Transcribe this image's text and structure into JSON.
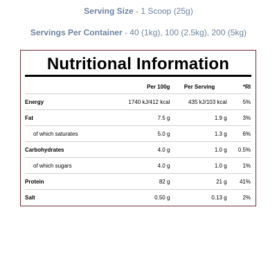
{
  "serving": {
    "size_label": "Serving Size",
    "size_value": " - 1 Scoop (25g)",
    "per_container_label": "Servings Per Container",
    "per_container_value": " - 40 (1kg), 100 (2.5kg), 200 (5kg)"
  },
  "panel": {
    "title": "Nutritional Information"
  },
  "table": {
    "headers": {
      "name": "",
      "per_100g": "Per 100g",
      "per_serving": "Per Serving",
      "ri": "*RI"
    },
    "rows": [
      {
        "name": "Energy",
        "per_100g": "1740 kJ/412 kcal",
        "per_serving": "435 kJ/103 kcal",
        "ri": "5%"
      },
      {
        "name": "Fat",
        "per_100g": "7.5 g",
        "per_serving": "1.9 g",
        "ri": "3%"
      },
      {
        "name": "of which saturates",
        "per_100g": "5.0 g",
        "per_serving": "1.3 g",
        "ri": "6%"
      },
      {
        "name": "Carbohydrates",
        "per_100g": "4.0 g",
        "per_serving": "1.0 g",
        "ri": "0.5%"
      },
      {
        "name": "of which sugars",
        "per_100g": "4.0 g",
        "per_serving": "1.0 g",
        "ri": "1%"
      },
      {
        "name": "Protein",
        "per_100g": "82 g",
        "per_serving": "21 g",
        "ri": "41%"
      },
      {
        "name": "Salt",
        "per_100g": "0.50 g",
        "per_serving": "0.13 g",
        "ri": "2%"
      }
    ]
  },
  "colors": {
    "serving_text": "#6d84a0",
    "panel_border": "#6e2a33",
    "text": "#000000"
  }
}
